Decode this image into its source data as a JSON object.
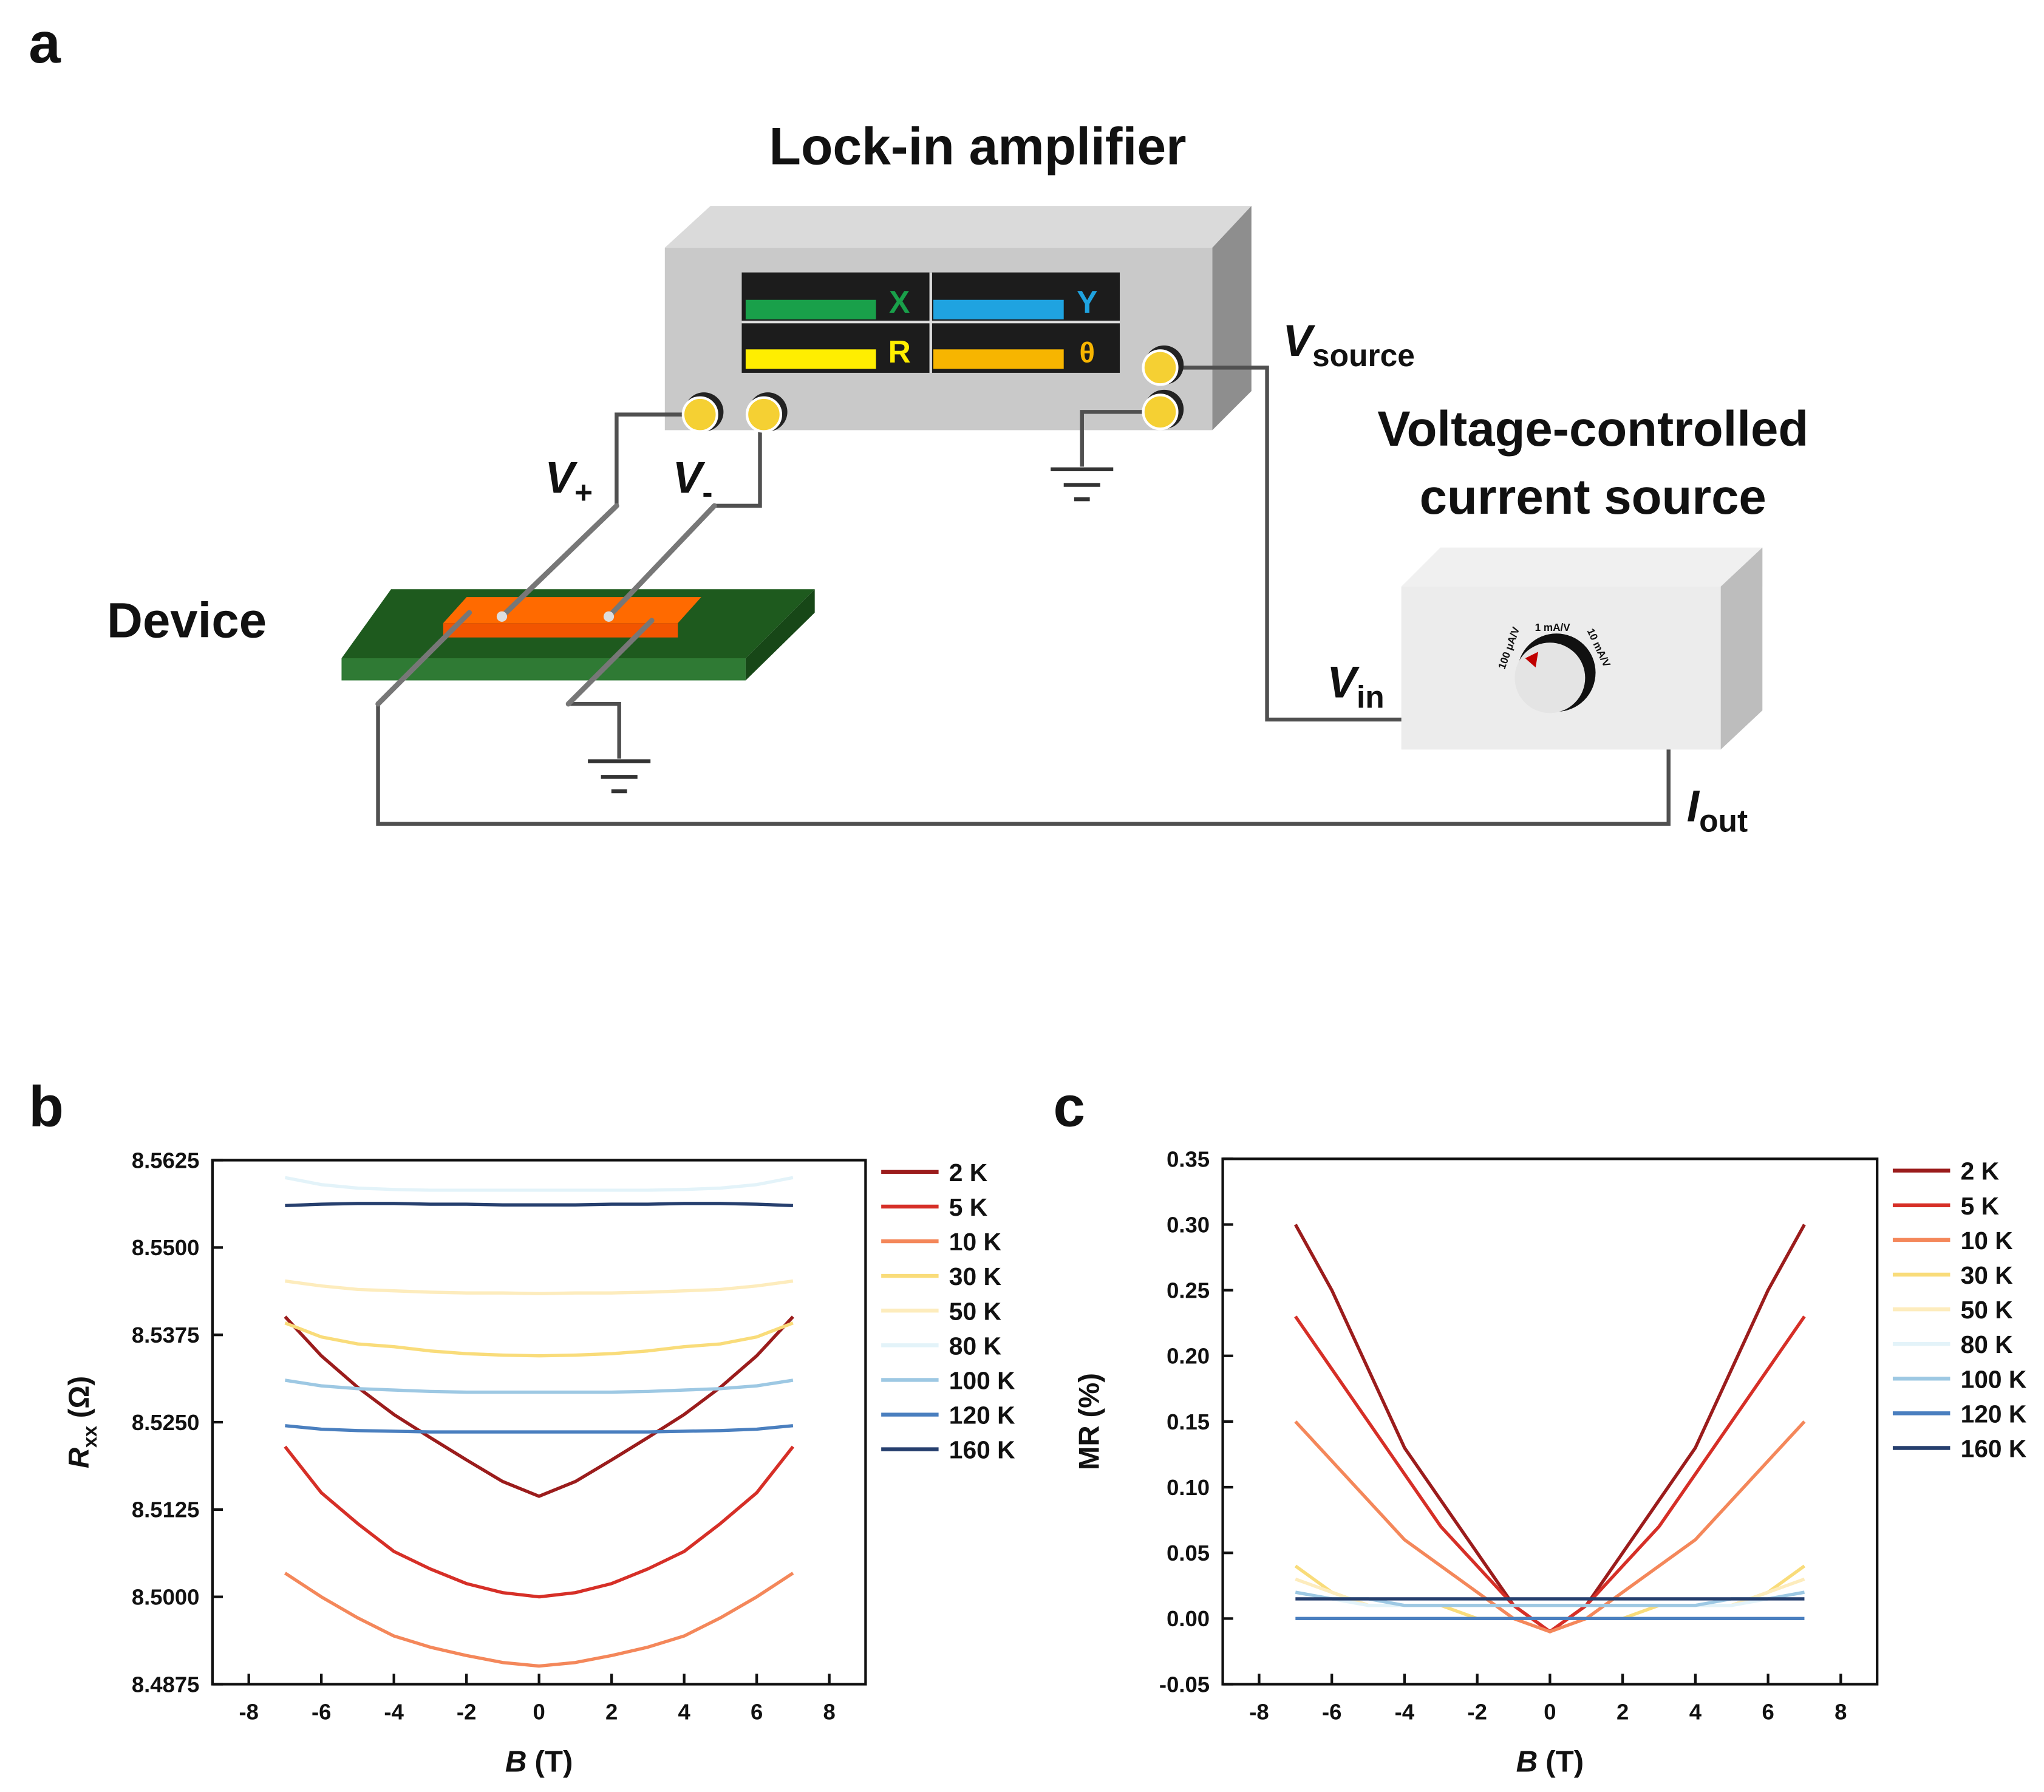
{
  "diagram": {
    "panel_label": "a",
    "lockin_title": "Lock-in amplifier",
    "display": [
      "X",
      "Y",
      "R",
      "θ"
    ],
    "v_source": {
      "symbol": "V",
      "subscript": "source"
    },
    "source_title": [
      "Voltage-controlled",
      "current source"
    ],
    "v_plus": {
      "symbol": "V",
      "subscript": "+"
    },
    "v_minus": {
      "symbol": "V",
      "subscript": "-"
    },
    "device_label": "Device",
    "v_in": {
      "symbol": "V",
      "subscript": "in"
    },
    "i_out": {
      "symbol": "I",
      "subscript": "out"
    },
    "knob_labels": [
      "100 μA/V",
      "1 mA/V",
      "10 mA/V"
    ]
  },
  "chart_data": [
    {
      "type": "line",
      "panel_label": "b",
      "x_label": {
        "symbol": "B",
        "unit": "(T)"
      },
      "y_label": {
        "symbol": "R",
        "subscript": "xx",
        "unit": "(Ω)"
      },
      "xlim": [
        -9,
        9
      ],
      "xticks": [
        -8,
        -6,
        -4,
        -2,
        0,
        2,
        4,
        6,
        8
      ],
      "ylim": [
        8.4875,
        8.5625
      ],
      "yticks": [
        8.4875,
        {
          "value": 8.5,
          "label": "8.5000"
        },
        8.5125,
        {
          "value": 8.525,
          "label": "8.5250"
        },
        8.5375,
        {
          "value": 8.55,
          "label": "8.5500"
        },
        8.5625
      ],
      "x": [
        -7,
        -6,
        -5,
        -4,
        -3,
        -2,
        -1,
        0,
        1,
        2,
        3,
        4,
        5,
        6,
        7
      ],
      "series": [
        {
          "name": "2 K",
          "color": "#9b1c1c",
          "values": [
            8.5401,
            8.5345,
            8.53,
            8.5261,
            8.5228,
            8.5196,
            8.5165,
            8.5144,
            8.5165,
            8.5196,
            8.5228,
            8.5261,
            8.53,
            8.5345,
            8.5401
          ]
        },
        {
          "name": "5 K",
          "color": "#d62f27",
          "values": [
            8.5215,
            8.5149,
            8.5105,
            8.5065,
            8.504,
            8.5019,
            8.5006,
            8.5,
            8.5006,
            8.5019,
            8.504,
            8.5065,
            8.5105,
            8.5149,
            8.5215
          ]
        },
        {
          "name": "10 K",
          "color": "#f4875a",
          "values": [
            8.5034,
            8.5,
            8.497,
            8.4944,
            8.4928,
            8.4916,
            8.4906,
            8.4901,
            8.4906,
            8.4916,
            8.4928,
            8.4944,
            8.497,
            8.5,
            8.5034
          ]
        },
        {
          "name": "30 K",
          "color": "#f9dc7a",
          "values": [
            8.5392,
            8.5372,
            8.5362,
            8.5358,
            8.5352,
            8.5348,
            8.5346,
            8.5345,
            8.5346,
            8.5348,
            8.5352,
            8.5358,
            8.5362,
            8.5372,
            8.5392
          ]
        },
        {
          "name": "50 K",
          "color": "#fdecbd",
          "values": [
            8.5452,
            8.5445,
            8.544,
            8.5438,
            8.5436,
            8.5435,
            8.5435,
            8.5434,
            8.5435,
            8.5435,
            8.5436,
            8.5438,
            8.544,
            8.5445,
            8.5452
          ]
        },
        {
          "name": "80 K",
          "color": "#e3f3f9",
          "values": [
            8.56,
            8.559,
            8.5585,
            8.5583,
            8.5582,
            8.5582,
            8.5582,
            8.5582,
            8.5582,
            8.5582,
            8.5582,
            8.5583,
            8.5585,
            8.559,
            8.56
          ]
        },
        {
          "name": "100 K",
          "color": "#9dc8e3",
          "values": [
            8.531,
            8.5302,
            8.5298,
            8.5296,
            8.5294,
            8.5293,
            8.5293,
            8.5293,
            8.5293,
            8.5293,
            8.5294,
            8.5296,
            8.5298,
            8.5302,
            8.531
          ]
        },
        {
          "name": "120 K",
          "color": "#4a7fbf",
          "values": [
            8.5245,
            8.524,
            8.5238,
            8.5237,
            8.5236,
            8.5236,
            8.5236,
            8.5236,
            8.5236,
            8.5236,
            8.5236,
            8.5237,
            8.5238,
            8.524,
            8.5245
          ]
        },
        {
          "name": "160 K",
          "color": "#263f6e",
          "values": [
            8.556,
            8.5562,
            8.5563,
            8.5563,
            8.5562,
            8.5562,
            8.5561,
            8.5561,
            8.5561,
            8.5562,
            8.5562,
            8.5563,
            8.5563,
            8.5562,
            8.556
          ]
        }
      ]
    },
    {
      "type": "line",
      "panel_label": "c",
      "x_label": {
        "symbol": "B",
        "unit": "(T)"
      },
      "y_label": {
        "symbol": "MR",
        "unit": "(%)"
      },
      "xlim": [
        -9,
        9
      ],
      "xticks": [
        -8,
        -6,
        -4,
        -2,
        0,
        2,
        4,
        6,
        8
      ],
      "ylim": [
        -0.05,
        0.35
      ],
      "yticks": [
        -0.05,
        {
          "value": 0,
          "label": "0.00"
        },
        0.05,
        {
          "value": 0.1,
          "label": "0.10"
        },
        0.15,
        {
          "value": 0.2,
          "label": "0.20"
        },
        0.25,
        {
          "value": 0.3,
          "label": "0.30"
        },
        0.35
      ],
      "x": [
        -7,
        -6,
        -5,
        -4,
        -3,
        -2,
        -1,
        0,
        1,
        2,
        3,
        4,
        5,
        6,
        7
      ],
      "series": [
        {
          "name": "2 K",
          "color": "#9b1c1c",
          "values": [
            0.3,
            0.25,
            0.19,
            0.13,
            0.09,
            0.05,
            0.01,
            -0.01,
            0.01,
            0.05,
            0.09,
            0.13,
            0.19,
            0.25,
            0.3
          ]
        },
        {
          "name": "5 K",
          "color": "#d62f27",
          "values": [
            0.23,
            0.19,
            0.15,
            0.11,
            0.07,
            0.04,
            0.01,
            -0.01,
            0.01,
            0.04,
            0.07,
            0.11,
            0.15,
            0.19,
            0.23
          ]
        },
        {
          "name": "10 K",
          "color": "#f4875a",
          "values": [
            0.15,
            0.12,
            0.09,
            0.06,
            0.04,
            0.02,
            0,
            -0.01,
            0,
            0.02,
            0.04,
            0.06,
            0.09,
            0.12,
            0.15
          ]
        },
        {
          "name": "30 K",
          "color": "#f9dc7a",
          "values": [
            0.04,
            0.02,
            0.01,
            0.01,
            0.01,
            0,
            0,
            0,
            0,
            0,
            0.01,
            0.01,
            0.01,
            0.02,
            0.04
          ]
        },
        {
          "name": "50 K",
          "color": "#fdecbd",
          "values": [
            0.03,
            0.02,
            0.01,
            0.01,
            0.01,
            0.01,
            0.01,
            0.01,
            0.01,
            0.01,
            0.01,
            0.01,
            0.01,
            0.02,
            0.03
          ]
        },
        {
          "name": "80 K",
          "color": "#e3f3f9",
          "values": [
            0.02,
            0.015,
            0.01,
            0.01,
            0.01,
            0.01,
            0.01,
            0.01,
            0.01,
            0.01,
            0.01,
            0.01,
            0.01,
            0.015,
            0.02
          ]
        },
        {
          "name": "100 K",
          "color": "#9dc8e3",
          "values": [
            0.02,
            0.015,
            0.015,
            0.01,
            0.01,
            0.01,
            0.01,
            0.01,
            0.01,
            0.01,
            0.01,
            0.01,
            0.015,
            0.015,
            0.02
          ]
        },
        {
          "name": "120 K",
          "color": "#4a7fbf",
          "values": [
            0,
            0,
            0,
            0,
            0,
            0,
            0,
            0,
            0,
            0,
            0,
            0,
            0,
            0,
            0
          ]
        },
        {
          "name": "160 K",
          "color": "#263f6e",
          "values": [
            0.015,
            0.015,
            0.015,
            0.015,
            0.015,
            0.015,
            0.015,
            0.015,
            0.015,
            0.015,
            0.015,
            0.015,
            0.015,
            0.015,
            0.015
          ]
        }
      ]
    }
  ]
}
